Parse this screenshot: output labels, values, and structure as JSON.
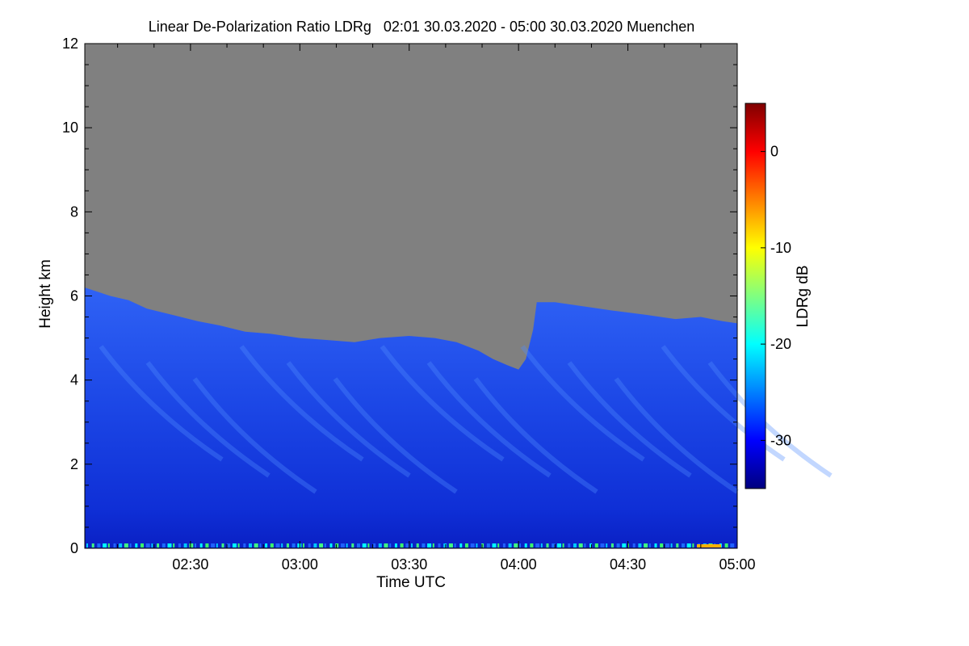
{
  "chart_data": {
    "type": "heatmap",
    "title": "Linear De-Polarization Ratio LDRg   02:01 30.03.2020 - 05:00 30.03.2020 Muenchen",
    "xlabel": "Time UTC",
    "ylabel": "Height km",
    "xlim_minutes": [
      121,
      300
    ],
    "ylim": [
      0,
      12
    ],
    "x_ticks": [
      {
        "label": "02:30",
        "minutes": 150
      },
      {
        "label": "03:00",
        "minutes": 180
      },
      {
        "label": "03:30",
        "minutes": 210
      },
      {
        "label": "04:00",
        "minutes": 240
      },
      {
        "label": "04:30",
        "minutes": 270
      },
      {
        "label": "05:00",
        "minutes": 300
      }
    ],
    "y_ticks": [
      0,
      2,
      4,
      6,
      8,
      10,
      12
    ],
    "colorbar": {
      "label": "LDRg dB",
      "range": [
        -35,
        5
      ],
      "ticks": [
        "0",
        "-10",
        "-20",
        "-30"
      ],
      "tick_values": [
        0,
        -10,
        -20,
        -30
      ],
      "colormap": [
        "#00007f",
        "#0000ff",
        "#0080ff",
        "#00ffff",
        "#80ff80",
        "#ffff00",
        "#ff8000",
        "#ff0000",
        "#7f0000"
      ]
    },
    "no_data_color": "#808080",
    "typical_signal_color": "#1f4fe8",
    "signal_top_km": [
      {
        "minutes": 121,
        "km": 6.2
      },
      {
        "minutes": 128,
        "km": 6.0
      },
      {
        "minutes": 133,
        "km": 5.9
      },
      {
        "minutes": 138,
        "km": 5.7
      },
      {
        "minutes": 145,
        "km": 5.55
      },
      {
        "minutes": 152,
        "km": 5.4
      },
      {
        "minutes": 158,
        "km": 5.3
      },
      {
        "minutes": 165,
        "km": 5.15
      },
      {
        "minutes": 172,
        "km": 5.1
      },
      {
        "minutes": 180,
        "km": 5.0
      },
      {
        "minutes": 188,
        "km": 4.95
      },
      {
        "minutes": 195,
        "km": 4.9
      },
      {
        "minutes": 202,
        "km": 5.0
      },
      {
        "minutes": 210,
        "km": 5.05
      },
      {
        "minutes": 217,
        "km": 5.0
      },
      {
        "minutes": 223,
        "km": 4.9
      },
      {
        "minutes": 229,
        "km": 4.7
      },
      {
        "minutes": 233,
        "km": 4.5
      },
      {
        "minutes": 237,
        "km": 4.35
      },
      {
        "minutes": 240,
        "km": 4.25
      },
      {
        "minutes": 242,
        "km": 4.5
      },
      {
        "minutes": 244,
        "km": 5.2
      },
      {
        "minutes": 245,
        "km": 5.85
      },
      {
        "minutes": 250,
        "km": 5.85
      },
      {
        "minutes": 258,
        "km": 5.75
      },
      {
        "minutes": 266,
        "km": 5.65
      },
      {
        "minutes": 275,
        "km": 5.55
      },
      {
        "minutes": 283,
        "km": 5.45
      },
      {
        "minutes": 290,
        "km": 5.5
      },
      {
        "minutes": 296,
        "km": 5.4
      },
      {
        "minutes": 300,
        "km": 5.35
      }
    ]
  }
}
